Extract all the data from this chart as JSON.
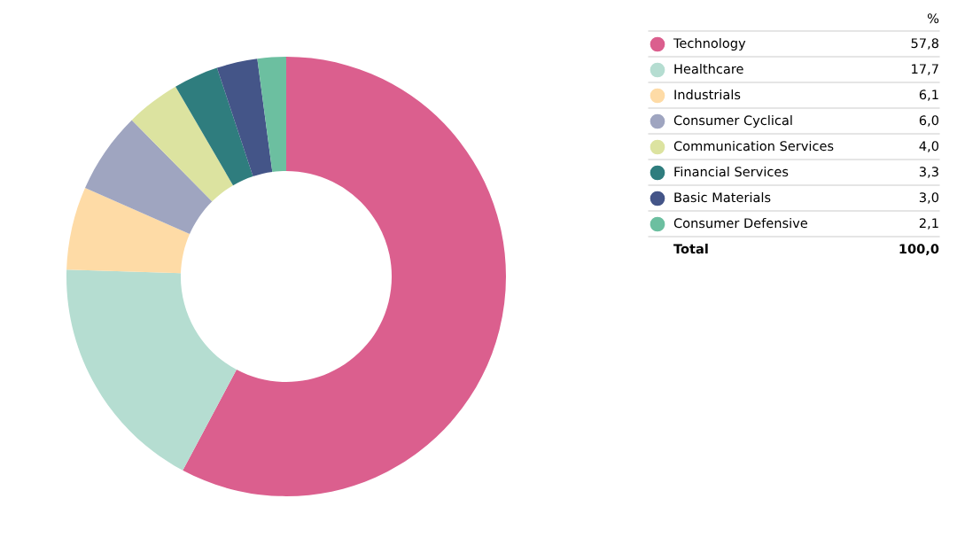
{
  "chart_data": {
    "type": "donut",
    "categories": [
      "Technology",
      "Healthcare",
      "Industrials",
      "Consumer Cyclical",
      "Communication Services",
      "Financial Services",
      "Basic Materials",
      "Consumer Defensive"
    ],
    "values": [
      57.8,
      17.7,
      6.1,
      6.0,
      4.0,
      3.3,
      3.0,
      2.1
    ],
    "value_labels": [
      "57,8",
      "17,7",
      "6,1",
      "6,0",
      "4,0",
      "3,3",
      "3,0",
      "2,1"
    ],
    "colors": [
      "#db5f8e",
      "#b5ddd1",
      "#fedba6",
      "#9fa5c0",
      "#dce3a0",
      "#2f7d7e",
      "#445588",
      "#6cbfa0"
    ],
    "legend": "top right",
    "legend_title": "%",
    "annotations": [
      "Total"
    ],
    "totals": [
      "100,0"
    ]
  }
}
